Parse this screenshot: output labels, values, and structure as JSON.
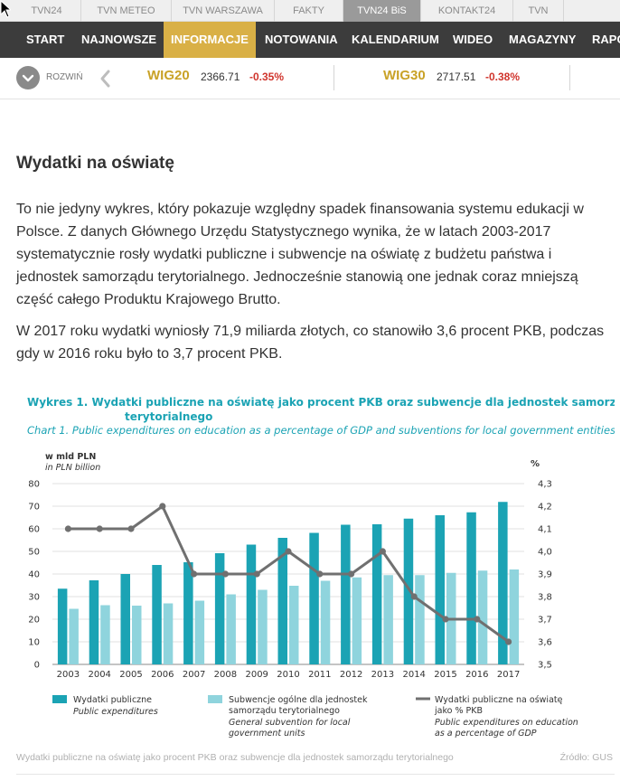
{
  "top_tabs": [
    {
      "label": "TVN24",
      "active": false
    },
    {
      "label": "TVN METEO",
      "active": false
    },
    {
      "label": "TVN WARSZAWA",
      "active": false
    },
    {
      "label": "FAKTY",
      "active": false
    },
    {
      "label": "TVN24 BiS",
      "active": true
    },
    {
      "label": "KONTAKT24",
      "active": false
    },
    {
      "label": "TVN",
      "active": false
    }
  ],
  "nav": [
    {
      "label": "START",
      "active": false
    },
    {
      "label": "NAJNOWSZE",
      "active": false
    },
    {
      "label": "INFORMACJE",
      "active": true
    },
    {
      "label": "NOTOWANIA",
      "active": false
    },
    {
      "label": "KALENDARIUM",
      "active": false
    },
    {
      "label": "WIDEO",
      "active": false
    },
    {
      "label": "MAGAZYNY",
      "active": false
    },
    {
      "label": "RAPO",
      "active": false
    }
  ],
  "ticker": {
    "expand_label": "ROZWIŃ",
    "items": [
      {
        "name": "WIG20",
        "value": "2366.71",
        "change": "-0.35%"
      },
      {
        "name": "WIG30",
        "value": "2717.51",
        "change": "-0.38%"
      }
    ]
  },
  "article": {
    "title": "Wydatki na oświatę",
    "paragraph1": "To nie jedyny wykres, który pokazuje względny spadek finansowania systemu edukacji w Polsce. Z danych Głównego Urzędu Statystycznego wynika, że w latach 2003-2017 systematycznie rosły wydatki publiczne i subwencje na oświatę z budżetu państwa i jednostek samorządu terytorialnego. Jednocześnie stanowią one jednak coraz mniejszą część całego Produktu Krajowego Brutto.",
    "paragraph2": "W 2017 roku wydatki wyniosły 71,9 miliarda złotych, co stanowiło 3,6 procent PKB, podczas gdy w 2016 roku było to 3,7 procent PKB.",
    "image_caption": "Wydatki publiczne na oświatę jako procent PKB oraz subwencje dla jednostek samorządu terytorialnego",
    "image_source": "Źródło: GUS"
  },
  "colors": {
    "nav_bg": "#3c3c3c",
    "nav_active": "#d9b046",
    "ticker_gold": "#c9a227",
    "negative": "#d0342c",
    "bar_dark": "#1ba3b4",
    "bar_light": "#8fd4dd",
    "line": "#707070",
    "chart_title": "#1ba3b4"
  },
  "chart_data": {
    "type": "bar",
    "title": "Wykres 1. Wydatki publiczne na oświatę jako procent PKB oraz subwencje dla jednostek samorządu terytorialnego",
    "subtitle": "Chart 1. Public expenditures on education as a percentage of GDP and subventions for local government entities",
    "ylabel": "w mld PLN",
    "ylabel_en": "in PLN billion",
    "y2label": "%",
    "ylim": [
      0,
      80
    ],
    "y_ticks": [
      0,
      10,
      20,
      30,
      40,
      50,
      60,
      70,
      80
    ],
    "y2lim": [
      3.5,
      4.3
    ],
    "y2_ticks": [
      "3,5",
      "3,6",
      "3,7",
      "3,8",
      "3,9",
      "4,0",
      "4,1",
      "4,2",
      "4,3"
    ],
    "grid": true,
    "categories": [
      "2003",
      "2004",
      "2005",
      "2006",
      "2007",
      "2008",
      "2009",
      "2010",
      "2011",
      "2012",
      "2013",
      "2014",
      "2015",
      "2016",
      "2017"
    ],
    "series": [
      {
        "name": "Wydatki publiczne",
        "name_en": "Public expenditures",
        "kind": "bar",
        "axis": "left",
        "values": [
          33.5,
          37.2,
          40.0,
          44.0,
          45.2,
          49.2,
          53.0,
          56.0,
          58.2,
          61.8,
          62.0,
          64.5,
          66.0,
          67.3,
          71.9
        ]
      },
      {
        "name": "Subwencje ogólne dla jednostek samorządu terytorialnego",
        "name_en": "General subvention for local government units",
        "kind": "bar",
        "axis": "left",
        "values": [
          24.6,
          26.2,
          26.0,
          27.0,
          28.2,
          31.0,
          33.0,
          34.8,
          37.0,
          38.5,
          39.5,
          39.5,
          40.5,
          41.5,
          42.0
        ]
      },
      {
        "name": "Wydatki publiczne na oświatę jako % PKB",
        "name_en": "Public expenditures on education as a percentage of GDP",
        "kind": "line",
        "axis": "right",
        "values": [
          4.1,
          4.1,
          4.1,
          4.2,
          3.9,
          3.9,
          3.9,
          4.0,
          3.9,
          3.9,
          4.0,
          3.8,
          3.7,
          3.7,
          3.6
        ]
      }
    ],
    "legend_position": "bottom"
  }
}
